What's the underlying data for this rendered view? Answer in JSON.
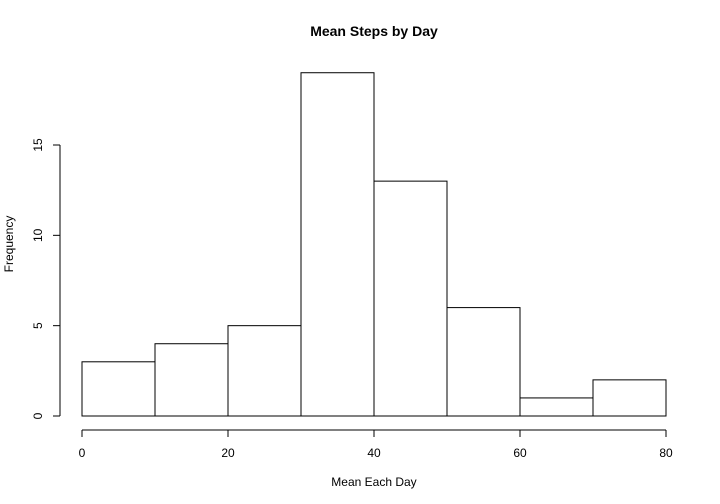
{
  "chart_data": {
    "type": "bar",
    "subtype": "histogram",
    "title": "Mean Steps by Day",
    "xlabel": "Mean Each Day",
    "ylabel": "Frequency",
    "bins": [
      {
        "start": 0,
        "end": 10,
        "count": 3
      },
      {
        "start": 10,
        "end": 20,
        "count": 4
      },
      {
        "start": 20,
        "end": 30,
        "count": 5
      },
      {
        "start": 30,
        "end": 40,
        "count": 19
      },
      {
        "start": 40,
        "end": 50,
        "count": 13
      },
      {
        "start": 50,
        "end": 60,
        "count": 6
      },
      {
        "start": 60,
        "end": 70,
        "count": 1
      },
      {
        "start": 70,
        "end": 80,
        "count": 2
      }
    ],
    "categories": [
      "0-10",
      "10-20",
      "20-30",
      "30-40",
      "40-50",
      "50-60",
      "60-70",
      "70-80"
    ],
    "values": [
      3,
      4,
      5,
      19,
      13,
      6,
      1,
      2
    ],
    "xlim": [
      0,
      80
    ],
    "ylim": [
      0,
      19
    ],
    "x_ticks": [
      0,
      20,
      40,
      60,
      80
    ],
    "y_ticks": [
      0,
      5,
      10,
      15
    ],
    "grid": false,
    "legend": "none",
    "colors": {
      "bar_fill": "#ffffff",
      "bar_stroke": "#000000",
      "axis": "#000000",
      "background": "#ffffff"
    }
  }
}
